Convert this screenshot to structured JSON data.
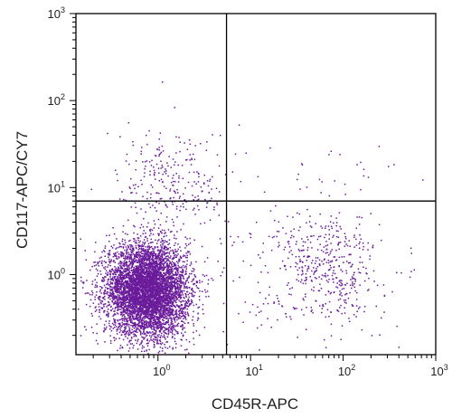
{
  "chart_data": {
    "type": "scatter",
    "title": "",
    "xlabel": "CD45R-APC",
    "ylabel": "CD117-APC/CY7",
    "xscale": "log",
    "yscale": "log",
    "xlim": [
      0.13,
      1000
    ],
    "ylim": [
      0.12,
      1000
    ],
    "x_tick_labels": [
      {
        "base": "10",
        "exp": "0",
        "value": 1
      },
      {
        "base": "10",
        "exp": "1",
        "value": 10
      },
      {
        "base": "10",
        "exp": "2",
        "value": 100
      },
      {
        "base": "10",
        "exp": "3",
        "value": 1000
      }
    ],
    "y_tick_labels": [
      {
        "base": "10",
        "exp": "0",
        "value": 1
      },
      {
        "base": "10",
        "exp": "1",
        "value": 10
      },
      {
        "base": "10",
        "exp": "2",
        "value": 100
      },
      {
        "base": "10",
        "exp": "3",
        "value": 1000
      }
    ],
    "quadrant_gate": {
      "x": 5.5,
      "y": 7
    },
    "point_color": "#6a1b9a",
    "grid": false,
    "legend": "none",
    "populations": [
      {
        "description": "CD45R- CD117- main cluster",
        "count": 5200,
        "x_median": 0.75,
        "y_median": 0.7,
        "x_spread_decades": 0.22,
        "y_spread_decades": 0.26
      },
      {
        "description": "CD45R- CD117- lower tail",
        "count": 700,
        "x_median": 0.9,
        "y_median": 0.4,
        "x_spread_decades": 0.2,
        "y_spread_decades": 0.2
      },
      {
        "description": "CD45R- CD117+ upper scatter",
        "count": 260,
        "x_median": 1.5,
        "y_median": 12,
        "x_spread_decades": 0.3,
        "y_spread_decades": 0.3
      },
      {
        "description": "CD45R+ CD117- cluster",
        "count": 420,
        "x_median": 70,
        "y_median": 1.2,
        "x_spread_decades": 0.28,
        "y_spread_decades": 0.32
      },
      {
        "description": "CD45R+ scattered",
        "count": 140,
        "x_median": 20,
        "y_median": 0.8,
        "x_spread_decades": 0.55,
        "y_spread_decades": 0.5
      },
      {
        "description": "CD45R+ CD117+ sparse",
        "count": 22,
        "x_median": 80,
        "y_median": 18,
        "x_spread_decades": 0.6,
        "y_spread_decades": 0.15
      }
    ]
  }
}
